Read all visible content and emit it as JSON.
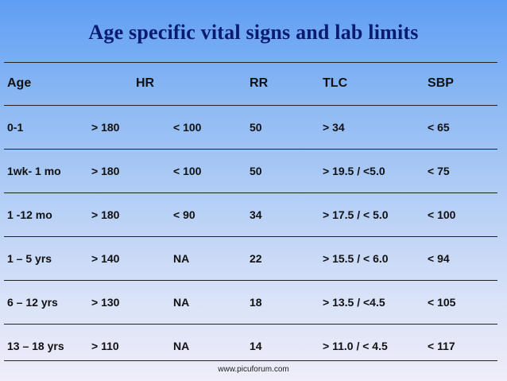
{
  "slide": {
    "title": "Age specific vital signs and lab limits",
    "footer": "www.picuforum.com"
  },
  "table": {
    "headers": {
      "age": "Age",
      "hr": "HR",
      "rr": "RR",
      "tlc": "TLC",
      "sbp": "SBP"
    },
    "rows": [
      {
        "age": "0-1",
        "hr_high": "> 180",
        "hr_low": "< 100",
        "rr": "50",
        "tlc": "> 34",
        "sbp": "< 65"
      },
      {
        "age": "1wk- 1 mo",
        "hr_high": "> 180",
        "hr_low": "< 100",
        "rr": "50",
        "tlc": "> 19.5  / <5.0",
        "sbp": "< 75"
      },
      {
        "age": "1 -12 mo",
        "hr_high": "> 180",
        "hr_low": "< 90",
        "rr": "34",
        "tlc": "> 17.5 / < 5.0",
        "sbp": "< 100"
      },
      {
        "age": "1 – 5  yrs",
        "hr_high": "> 140",
        "hr_low": "NA",
        "rr": "22",
        "tlc": "> 15.5  / < 6.0",
        "sbp": "< 94"
      },
      {
        "age": "6 – 12  yrs",
        "hr_high": "> 130",
        "hr_low": "NA",
        "rr": "18",
        "tlc": "> 13.5  / <4.5",
        "sbp": "< 105"
      },
      {
        "age": "13 – 18 yrs",
        "hr_high": "> 110",
        "hr_low": "NA",
        "rr": "14",
        "tlc": "> 11.0  / < 4.5",
        "sbp": "< 117"
      }
    ]
  }
}
